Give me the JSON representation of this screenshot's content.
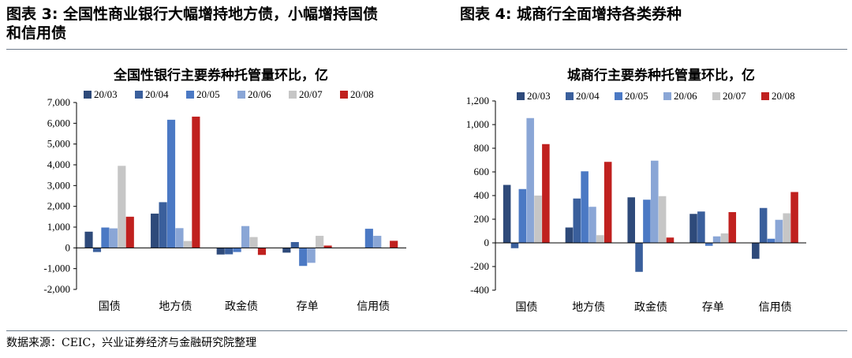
{
  "header": {
    "left_title_lines": [
      "图表 3:  全国性商业银行大幅增持地方债，小幅增持国债",
      "和信用债"
    ],
    "right_title": "图表 4:  城商行全面增持各类券种"
  },
  "source": "数据来源：CEIC，兴业证券经济与金融研究院整理",
  "colors": [
    "#2e4a7a",
    "#3a5f9c",
    "#4b79c4",
    "#8aa6d6",
    "#c6c6c6",
    "#c0211f"
  ],
  "chart_data": [
    {
      "type": "bar",
      "title": "全国性银行主要券种托管量环比，亿",
      "categories": [
        "国债",
        "地方债",
        "政金债",
        "存单",
        "信用债"
      ],
      "ylim": [
        -2000,
        7000
      ],
      "yticks": [
        -2000,
        -1000,
        0,
        1000,
        2000,
        3000,
        4000,
        5000,
        6000,
        7000
      ],
      "ytick_labels": [
        "-2,000",
        "-1,000",
        "0",
        "1,000",
        "2,000",
        "3,000",
        "4,000",
        "5,000",
        "6,000",
        "7,000"
      ],
      "legend_position": "top",
      "series": [
        {
          "name": "20/03",
          "values": [
            780,
            1650,
            -320,
            -230,
            0
          ]
        },
        {
          "name": "20/04",
          "values": [
            -200,
            2200,
            -310,
            280,
            0
          ]
        },
        {
          "name": "20/05",
          "values": [
            980,
            6170,
            -200,
            -870,
            920
          ]
        },
        {
          "name": "20/06",
          "values": [
            940,
            950,
            1050,
            -720,
            580
          ]
        },
        {
          "name": "20/07",
          "values": [
            3950,
            330,
            520,
            580,
            0
          ]
        },
        {
          "name": "20/08",
          "values": [
            1500,
            6320,
            -340,
            110,
            340
          ]
        }
      ]
    },
    {
      "type": "bar",
      "title": "城商行主要券种托管量环比，亿",
      "categories": [
        "国债",
        "地方债",
        "政金债",
        "存单",
        "信用债"
      ],
      "ylim": [
        -400,
        1200
      ],
      "yticks": [
        -400,
        -200,
        0,
        200,
        400,
        600,
        800,
        1000,
        1200
      ],
      "ytick_labels": [
        "-400",
        "-200",
        "0",
        "200",
        "400",
        "600",
        "800",
        "1,000",
        "1,200"
      ],
      "legend_position": "top",
      "series": [
        {
          "name": "20/03",
          "values": [
            490,
            130,
            385,
            245,
            -135
          ]
        },
        {
          "name": "20/04",
          "values": [
            -45,
            375,
            -245,
            265,
            295
          ]
        },
        {
          "name": "20/05",
          "values": [
            455,
            605,
            365,
            -25,
            35
          ]
        },
        {
          "name": "20/06",
          "values": [
            1055,
            305,
            695,
            55,
            195
          ]
        },
        {
          "name": "20/07",
          "values": [
            400,
            65,
            395,
            80,
            250
          ]
        },
        {
          "name": "20/08",
          "values": [
            835,
            685,
            45,
            260,
            430
          ]
        }
      ]
    }
  ]
}
